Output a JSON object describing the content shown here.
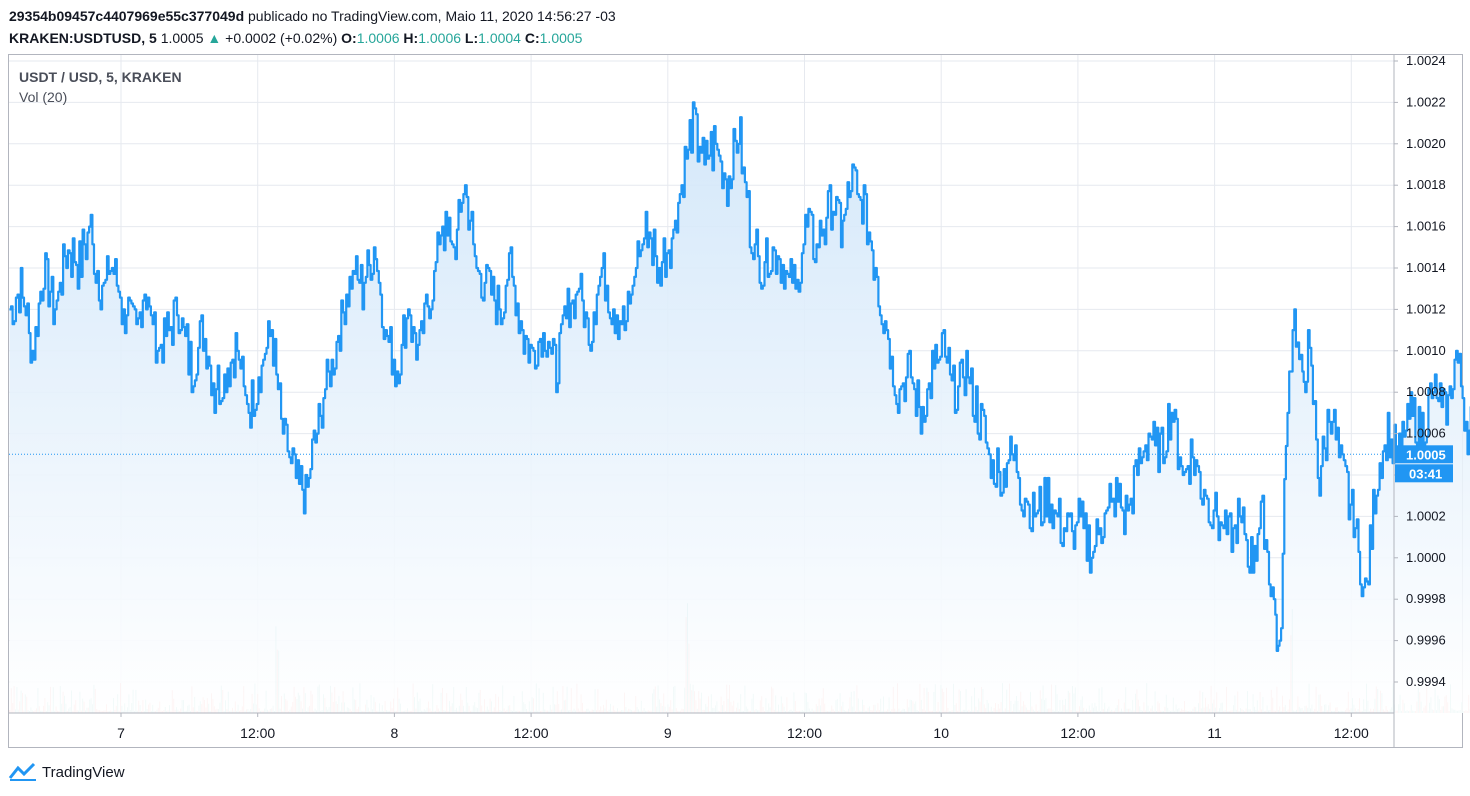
{
  "header": {
    "publisher": "29354b09457c4407969e55c377049d",
    "published_text": "publicado no TradingView.com, Maio 11, 2020 14:56:27 -03",
    "symbol": "KRAKEN:USDTUSD, 5",
    "last": "1.0005",
    "change_icon": "triangle-up-icon",
    "change": "+0.0002 (+0.02%)",
    "o_label": "O:",
    "o": "1.0006",
    "h_label": "H:",
    "h": "1.0006",
    "l_label": "L:",
    "l": "1.0004",
    "c_label": "C:",
    "c": "1.0005"
  },
  "legend": {
    "title": "USDT / USD, 5, KRAKEN",
    "volume": "Vol (20)"
  },
  "price_badge": "1.0005",
  "countdown_badge": "03:41",
  "footer": {
    "brand": "TradingView",
    "logo_icon": "tradingview-logo-icon"
  },
  "colors": {
    "line": "#2196f3",
    "fill_top": "#cfe5f9",
    "fill_bottom": "#ffffff",
    "volume_up": "#26a69a",
    "volume_down": "#ef5350",
    "grid": "#e6e9ef",
    "badge": "#2196f3"
  },
  "chart_data": {
    "type": "area",
    "title": "USDT / USD, 5, KRAKEN",
    "xlabel": "",
    "ylabel": "",
    "x_ticks": [
      "7",
      "12:00",
      "8",
      "12:00",
      "9",
      "12:00",
      "10",
      "12:00",
      "11",
      "12:00"
    ],
    "y_ticks": [
      "1.0024",
      "1.0022",
      "1.0020",
      "1.0018",
      "1.0016",
      "1.0014",
      "1.0012",
      "1.0010",
      "1.0008",
      "1.0006",
      "1.0004",
      "1.0002",
      "1.0000",
      "0.9998",
      "0.9996",
      "0.9994"
    ],
    "ylim": [
      0.99925,
      1.00245
    ],
    "grid": true,
    "last_value": 1.0005,
    "x_start_hours_before_tick_7": 9.8,
    "series": [
      {
        "name": "USDT / USD",
        "x_unit": "hours from start (see x_ticks)",
        "points": [
          [
            0,
            1.0012
          ],
          [
            1.0,
            1.0013
          ],
          [
            2.0,
            1.001
          ],
          [
            3.0,
            1.0014
          ],
          [
            4.0,
            1.0012
          ],
          [
            5.0,
            1.0015
          ],
          [
            6.0,
            1.0014
          ],
          [
            7.0,
            1.0016
          ],
          [
            8.0,
            1.0013
          ],
          [
            9.0,
            1.0014
          ],
          [
            10.0,
            1.0012
          ],
          [
            11.0,
            1.0011
          ],
          [
            12.0,
            1.0013
          ],
          [
            13.0,
            1.001
          ],
          [
            14.0,
            1.0011
          ],
          [
            15.0,
            1.0012
          ],
          [
            16.0,
            1.0009
          ],
          [
            17.0,
            1.0011
          ],
          [
            18.0,
            1.0008
          ],
          [
            19.0,
            1.0009
          ],
          [
            20.0,
            1.001
          ],
          [
            21.0,
            1.0007
          ],
          [
            22.0,
            1.0009
          ],
          [
            23.0,
            1.0011
          ],
          [
            24.0,
            1.0006
          ],
          [
            25.0,
            1.0004
          ],
          [
            26.0,
            1.0003
          ],
          [
            27.0,
            1.0006
          ],
          [
            28.0,
            1.0009
          ],
          [
            29.0,
            1.0011
          ],
          [
            30.0,
            1.0014
          ],
          [
            31.0,
            1.0013
          ],
          [
            32.0,
            1.0015
          ],
          [
            33.0,
            1.0011
          ],
          [
            34.0,
            1.0009
          ],
          [
            35.0,
            1.0012
          ],
          [
            36.0,
            1.001
          ],
          [
            37.0,
            1.0013
          ],
          [
            38.0,
            1.0016
          ],
          [
            39.0,
            1.0015
          ],
          [
            40.0,
            1.0018
          ],
          [
            41.0,
            1.0014
          ],
          [
            42.0,
            1.0013
          ],
          [
            43.0,
            1.0012
          ],
          [
            44.0,
            1.0014
          ],
          [
            45.0,
            1.0011
          ],
          [
            46.0,
            1.001
          ],
          [
            47.0,
            1.0011
          ],
          [
            48.0,
            1.0009
          ],
          [
            49.0,
            1.0012
          ],
          [
            50.0,
            1.0013
          ],
          [
            51.0,
            1.0011
          ],
          [
            52.0,
            1.0014
          ],
          [
            53.0,
            1.0012
          ],
          [
            54.0,
            1.0011
          ],
          [
            55.0,
            1.0014
          ],
          [
            56.0,
            1.0016
          ],
          [
            57.0,
            1.0014
          ],
          [
            58.0,
            1.0015
          ],
          [
            59.0,
            1.0018
          ],
          [
            60.0,
            1.0021
          ],
          [
            61.0,
            1.0019
          ],
          [
            62.0,
            1.002
          ],
          [
            63.0,
            1.0018
          ],
          [
            64.0,
            1.0021
          ],
          [
            65.0,
            1.0016
          ],
          [
            66.0,
            1.0014
          ],
          [
            67.0,
            1.0015
          ],
          [
            68.0,
            1.0014
          ],
          [
            69.0,
            1.0013
          ],
          [
            70.0,
            1.0016
          ],
          [
            71.0,
            1.0015
          ],
          [
            72.0,
            1.0017
          ],
          [
            73.0,
            1.0016
          ],
          [
            74.0,
            1.0018
          ],
          [
            75.0,
            1.0017
          ],
          [
            76.0,
            1.0014
          ],
          [
            77.0,
            1.0011
          ],
          [
            78.0,
            1.0008
          ],
          [
            79.0,
            1.0009
          ],
          [
            80.0,
            1.0007
          ],
          [
            81.0,
            1.0009
          ],
          [
            82.0,
            1.001
          ],
          [
            83.0,
            1.0008
          ],
          [
            84.0,
            1.0009
          ],
          [
            85.0,
            1.0007
          ],
          [
            86.0,
            1.0005
          ],
          [
            87.0,
            1.0004
          ],
          [
            88.0,
            1.0005
          ],
          [
            89.0,
            1.0003
          ],
          [
            90.0,
            1.0002
          ],
          [
            91.0,
            1.0003
          ],
          [
            92.0,
            1.0002
          ],
          [
            93.0,
            1.0001
          ],
          [
            94.0,
            1.0002
          ],
          [
            95.0,
            1.0
          ],
          [
            96.0,
            1.0002
          ],
          [
            97.0,
            1.0003
          ],
          [
            98.0,
            1.0002
          ],
          [
            99.0,
            1.0004
          ],
          [
            100.0,
            1.0006
          ],
          [
            101.0,
            1.0005
          ],
          [
            102.0,
            1.0007
          ],
          [
            103.0,
            1.0004
          ],
          [
            104.0,
            1.0005
          ],
          [
            105.0,
            1.0003
          ],
          [
            106.0,
            1.0002
          ],
          [
            107.0,
            1.0001
          ],
          [
            108.0,
            1.0002
          ],
          [
            109.0,
            1.0
          ],
          [
            110.0,
            1.0002
          ],
          [
            111.0,
            0.9998
          ],
          [
            111.5,
            0.9995
          ],
          [
            112.2,
            1.0008
          ],
          [
            112.8,
            1.0012
          ],
          [
            113.5,
            1.0008
          ],
          [
            114.0,
            1.001
          ],
          [
            115.0,
            1.0004
          ],
          [
            116.0,
            1.0007
          ],
          [
            117.0,
            1.0004
          ],
          [
            118.0,
            1.0002
          ],
          [
            119.0,
            0.9998
          ],
          [
            120.0,
            1.0004
          ],
          [
            121.0,
            1.0006
          ],
          [
            122.0,
            1.0005
          ],
          [
            123.0,
            1.0007
          ],
          [
            124.0,
            1.0006
          ],
          [
            125.0,
            1.0008
          ],
          [
            126.0,
            1.0007
          ],
          [
            127.0,
            1.001
          ],
          [
            128.0,
            1.0006
          ],
          [
            129.0,
            1.0007
          ],
          [
            130.0,
            1.0008
          ],
          [
            131.0,
            1.0011
          ],
          [
            132.0,
            1.0006
          ],
          [
            133.0,
            1.0004
          ],
          [
            134.0,
            1.0006
          ],
          [
            135.0,
            1.0009
          ],
          [
            136.0,
            1.0007
          ],
          [
            137.0,
            1.0006
          ],
          [
            138.0,
            1.001
          ],
          [
            139.0,
            1.0007
          ],
          [
            140.0,
            1.0004
          ],
          [
            141.0,
            1.0005
          ],
          [
            142.0,
            1.0001
          ],
          [
            143.0,
            1.0005
          ],
          [
            144.0,
            1.0003
          ],
          [
            145.0,
            1.0002
          ],
          [
            146.0,
            1.0006
          ],
          [
            147.0,
            1.0008
          ],
          [
            148.0,
            1.0005
          ],
          [
            149.0,
            1.0007
          ],
          [
            150.0,
            1.0006
          ],
          [
            151.0,
            1.0004
          ],
          [
            152.0,
            1.0006
          ],
          [
            153.0,
            1.0005
          ],
          [
            154.0,
            1.0007
          ],
          [
            155.0,
            1.0004
          ],
          [
            156.0,
            1.0006
          ],
          [
            157.0,
            1.0005
          ],
          [
            158.0,
            1.0007
          ],
          [
            159.0,
            1.0006
          ],
          [
            160.0,
            1.0004
          ],
          [
            161.0,
            1.0005
          ],
          [
            162.0,
            1.0006
          ],
          [
            163.0,
            1.0003
          ],
          [
            164.0,
            1.0005
          ],
          [
            165.0,
            1.0002
          ],
          [
            166.0,
            1.0005
          ],
          [
            167.0,
            1.0004
          ],
          [
            168.0,
            1.0006
          ],
          [
            169.0,
            1.0003
          ],
          [
            170.0,
            1.0005
          ],
          [
            171.0,
            1.0004
          ],
          [
            172.0,
            1.0006
          ],
          [
            173.0,
            1.0008
          ],
          [
            174.0,
            1.0005
          ],
          [
            175.0,
            1.0007
          ],
          [
            176.0,
            1.0009
          ],
          [
            177.0,
            1.0006
          ],
          [
            178.0,
            1.0011
          ],
          [
            178.5,
            1.0005
          ],
          [
            179.0,
            1.0004
          ],
          [
            180.0,
            1.0006
          ],
          [
            181.0,
            1.0004
          ],
          [
            181.4,
            1.0005
          ]
        ]
      }
    ],
    "volume": {
      "name": "Vol (20)",
      "notable_spikes": [
        {
          "x": 23.5,
          "direction": "up"
        },
        {
          "x": 59.5,
          "direction": "up"
        },
        {
          "x": 112.5,
          "direction": "down"
        },
        {
          "x": 136.0,
          "direction": "down"
        },
        {
          "x": 178.5,
          "direction": "up"
        },
        {
          "x": 178.8,
          "direction": "down"
        }
      ]
    }
  }
}
